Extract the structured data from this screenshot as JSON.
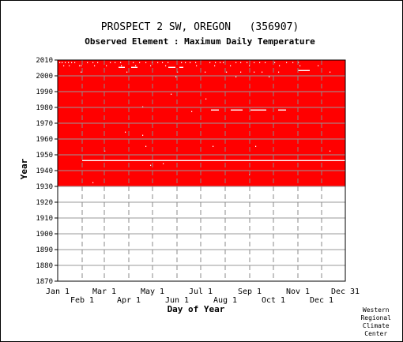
{
  "chart_data": {
    "type": "heatmap",
    "title": "PROSPECT 2 SW, OREGON   (356907)",
    "subtitle": "Observed Element : Maximum Daily Temperature",
    "xlabel": "Day of Year",
    "ylabel": "Year",
    "x_ticks_top_row": [
      "Jan 1",
      "Mar 1",
      "May 1",
      "Jul 1",
      "Sep 1",
      "Nov 1",
      "Dec 31"
    ],
    "x_ticks_bottom_row": [
      "Feb 1",
      "Apr 1",
      "Jun 1",
      "Aug 1",
      "Oct 1",
      "Dec 1"
    ],
    "x_tick_days": [
      1,
      32,
      60,
      91,
      121,
      152,
      182,
      213,
      244,
      274,
      305,
      335,
      365
    ],
    "y_ticks": [
      1870,
      1880,
      1890,
      1900,
      1910,
      1920,
      1930,
      1940,
      1950,
      1960,
      1970,
      1980,
      1990,
      2000,
      2010
    ],
    "ylim": [
      1870,
      2010
    ],
    "xlim": [
      1,
      365
    ],
    "data_color": "#ff0000",
    "missing_color": "#ffffff",
    "record_start_year": 1930,
    "record_end_year": 2010,
    "missing_segments": [
      {
        "year": 1946,
        "day_start": 32,
        "day_end": 365
      },
      {
        "year": 2003,
        "day_start": 305,
        "day_end": 320
      },
      {
        "year": 2005,
        "day_start": 78,
        "day_end": 86
      },
      {
        "year": 2005,
        "day_start": 94,
        "day_end": 102
      },
      {
        "year": 2005,
        "day_start": 141,
        "day_end": 150
      },
      {
        "year": 2005,
        "day_start": 155,
        "day_end": 160
      },
      {
        "year": 1978,
        "day_start": 195,
        "day_end": 205
      },
      {
        "year": 1978,
        "day_start": 220,
        "day_end": 235
      },
      {
        "year": 1978,
        "day_start": 245,
        "day_end": 265
      },
      {
        "year": 1978,
        "day_start": 280,
        "day_end": 290
      }
    ],
    "missing_days": [
      {
        "year": 2008,
        "days": [
          3,
          6,
          10,
          14,
          18,
          22,
          38,
          45,
          51,
          67,
          73,
          80,
          96,
          104,
          112,
          120,
          127,
          133,
          140,
          157,
          162,
          168,
          175,
          193,
          200,
          206,
          210,
          226,
          232,
          240,
          249,
          256,
          263,
          275,
          290,
          298,
          305
        ]
      },
      {
        "year": 2006,
        "days": [
          8,
          15,
          28,
          30,
          47,
          62,
          81,
          99,
          118,
          137,
          176,
          199,
          219,
          243,
          281,
          307,
          330
        ]
      },
      {
        "year": 2002,
        "days": [
          30,
          88,
          152,
          187,
          214,
          232,
          249,
          259,
          280,
          345
        ]
      },
      {
        "year": 1999,
        "days": [
          150,
          226,
          268
        ]
      },
      {
        "year": 1988,
        "days": [
          144
        ]
      },
      {
        "year": 1985,
        "days": [
          188
        ]
      },
      {
        "year": 1980,
        "days": [
          108
        ]
      },
      {
        "year": 1977,
        "days": [
          170
        ]
      },
      {
        "year": 1964,
        "days": [
          86
        ]
      },
      {
        "year": 1962,
        "days": [
          108
        ]
      },
      {
        "year": 1955,
        "days": [
          112,
          197,
          251
        ]
      },
      {
        "year": 1952,
        "days": [
          60,
          345
        ]
      },
      {
        "year": 1944,
        "days": [
          134
        ]
      },
      {
        "year": 1943,
        "days": [
          118
        ]
      },
      {
        "year": 1937,
        "days": [
          243
        ]
      },
      {
        "year": 1932,
        "days": [
          45
        ]
      }
    ]
  },
  "credit": {
    "line1": "Western",
    "line2": "Regional",
    "line3": "Climate",
    "line4": "Center"
  }
}
